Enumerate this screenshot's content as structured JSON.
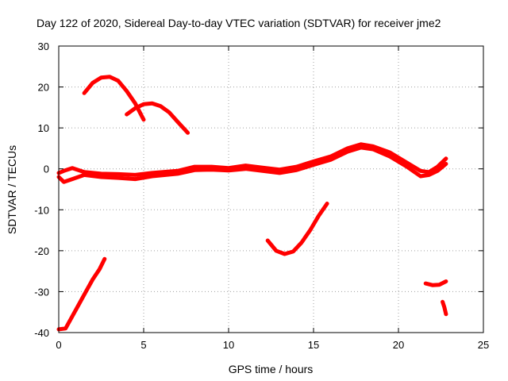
{
  "chart_data": {
    "type": "line",
    "title": "Day 122 of 2020, Sidereal Day-to-day VTEC variation (SDTVAR) for receiver jme2",
    "xlabel": "GPS time / hours",
    "ylabel": "SDTVAR / TECUs",
    "xlim": [
      0,
      25
    ],
    "ylim": [
      -40,
      30
    ],
    "xticks": [
      0,
      5,
      10,
      15,
      20,
      25
    ],
    "yticks": [
      -40,
      -30,
      -20,
      -10,
      0,
      10,
      20,
      30
    ],
    "grid": true,
    "legend": "none",
    "color": "#ff0000",
    "series": [
      {
        "name": "main-trace-upper",
        "x": [
          0.0,
          0.3,
          0.8,
          1.5,
          2.5,
          3.5,
          4.5,
          5.5,
          7.0,
          8.0,
          9.0,
          10.0,
          11.0,
          12.0,
          13.0,
          14.0,
          15.0,
          16.0,
          17.0,
          17.8,
          18.5,
          19.5,
          20.5,
          21.3,
          21.8,
          22.3,
          22.8
        ],
        "y": [
          -1.0,
          -0.5,
          0.2,
          -0.8,
          -1.2,
          -1.3,
          -1.5,
          -1.0,
          -0.5,
          0.5,
          0.5,
          0.2,
          0.8,
          0.3,
          -0.2,
          0.5,
          1.8,
          3.0,
          5.0,
          6.0,
          5.5,
          4.0,
          1.5,
          -0.5,
          -0.8,
          0.5,
          2.5
        ]
      },
      {
        "name": "main-trace-lower",
        "x": [
          0.0,
          0.3,
          0.8,
          1.5,
          2.5,
          3.5,
          4.5,
          5.5,
          7.0,
          8.0,
          9.0,
          10.0,
          11.0,
          12.0,
          13.0,
          14.0,
          15.0,
          16.0,
          17.0,
          17.8,
          18.5,
          19.5,
          20.5,
          21.3,
          21.8,
          22.3,
          22.8
        ],
        "y": [
          -2.0,
          -3.2,
          -2.5,
          -1.5,
          -2.0,
          -2.2,
          -2.5,
          -1.8,
          -1.2,
          -0.3,
          -0.2,
          -0.4,
          0.0,
          -0.5,
          -1.0,
          -0.3,
          1.0,
          2.2,
          4.2,
          5.2,
          4.8,
          3.0,
          0.5,
          -1.8,
          -1.5,
          -0.5,
          1.2
        ]
      },
      {
        "name": "arc-early",
        "x": [
          1.5,
          2.0,
          2.5,
          3.0,
          3.5,
          4.0,
          4.5,
          5.0
        ],
        "y": [
          18.5,
          21.0,
          22.3,
          22.5,
          21.5,
          19.0,
          16.0,
          12.0
        ]
      },
      {
        "name": "arc-mid",
        "x": [
          4.0,
          4.5,
          5.0,
          5.5,
          6.0,
          6.5,
          7.0,
          7.6
        ],
        "y": [
          13.3,
          14.8,
          15.8,
          16.0,
          15.3,
          13.8,
          11.5,
          8.8
        ]
      },
      {
        "name": "arc-rising",
        "x": [
          0.0,
          0.4,
          0.8,
          1.2,
          1.6,
          2.0,
          2.4,
          2.7
        ],
        "y": [
          -39.2,
          -39.0,
          -36.0,
          -33.0,
          -30.0,
          -27.0,
          -24.5,
          -22.0
        ]
      },
      {
        "name": "arc-dip",
        "x": [
          12.3,
          12.8,
          13.3,
          13.8,
          14.3,
          14.8,
          15.3,
          15.8
        ],
        "y": [
          -17.5,
          -20.0,
          -20.8,
          -20.2,
          -18.0,
          -15.0,
          -11.5,
          -8.5
        ]
      },
      {
        "name": "fragment-flat",
        "x": [
          21.6,
          22.0,
          22.4,
          22.8
        ],
        "y": [
          -28.0,
          -28.4,
          -28.3,
          -27.5
        ]
      },
      {
        "name": "fragment-short",
        "x": [
          22.6,
          22.7,
          22.8
        ],
        "y": [
          -32.5,
          -33.8,
          -35.5
        ]
      }
    ]
  }
}
